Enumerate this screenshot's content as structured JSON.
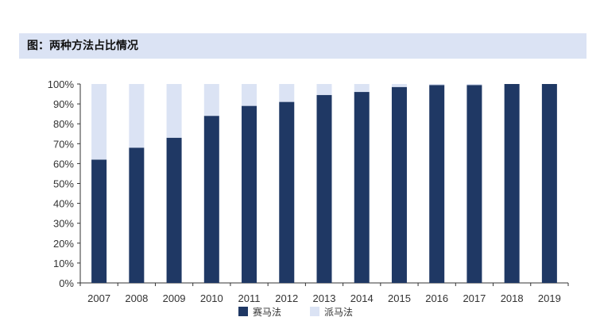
{
  "header": {
    "title": "图：两种方法占比情况"
  },
  "chart_data": {
    "type": "bar",
    "stacked": true,
    "categories": [
      "2007",
      "2008",
      "2009",
      "2010",
      "2011",
      "2012",
      "2013",
      "2014",
      "2015",
      "2016",
      "2017",
      "2018",
      "2019"
    ],
    "series": [
      {
        "name": "赛马法",
        "color": "#1f3864",
        "values": [
          62,
          68,
          73,
          84,
          89,
          91,
          94.5,
          96,
          98.5,
          99.5,
          99.5,
          100,
          100
        ]
      },
      {
        "name": "派马法",
        "color": "#dbe3f4",
        "values": [
          38,
          32,
          27,
          16,
          11,
          9,
          5.5,
          4,
          1.5,
          0.5,
          0.5,
          0,
          0
        ]
      }
    ],
    "yticks": [
      "0%",
      "10%",
      "20%",
      "30%",
      "40%",
      "50%",
      "60%",
      "70%",
      "80%",
      "90%",
      "100%"
    ],
    "ylim": [
      0,
      100
    ],
    "legend": "bottom"
  }
}
